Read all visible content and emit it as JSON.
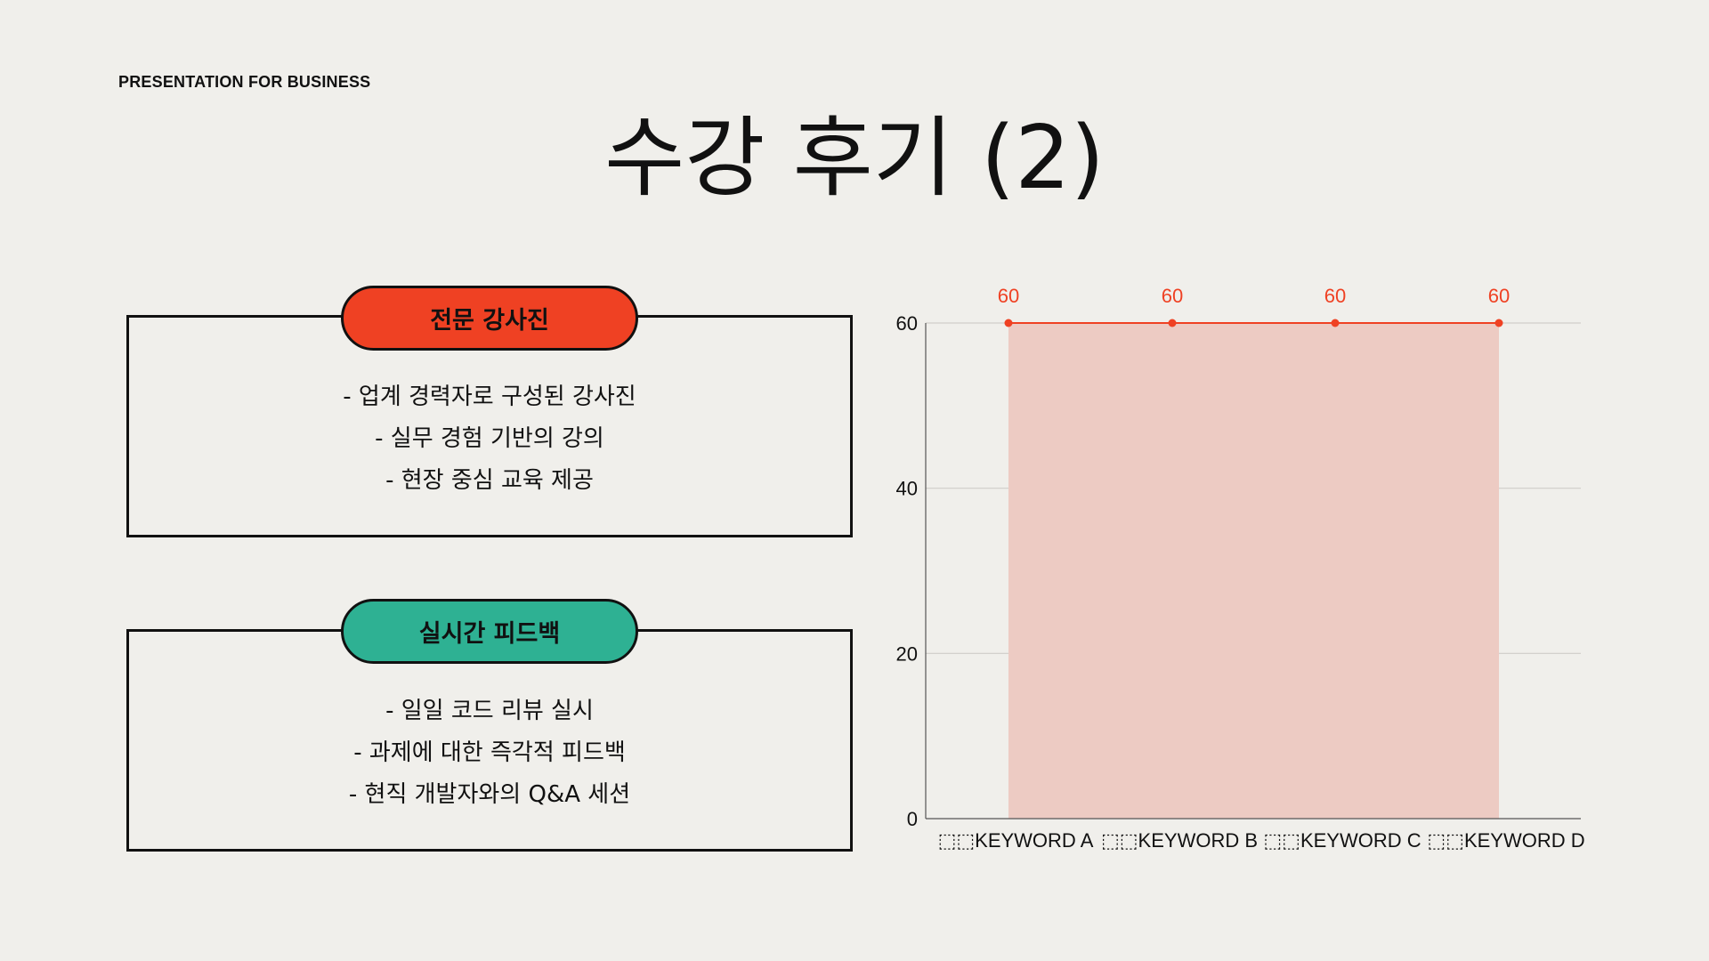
{
  "header": {
    "label": "PRESENTATION FOR BUSINESS"
  },
  "title": "수강 후기 (2)",
  "cards": [
    {
      "heading": "전문 강사진",
      "color": "#ef4123",
      "lines": [
        "- 업계 경력자로 구성된 강사진",
        "- 실무 경험 기반의 강의",
        "- 현장 중심 교육 제공"
      ]
    },
    {
      "heading": "실시간 피드백",
      "color": "#2eb193",
      "lines": [
        "- 일일 코드 리뷰 실시",
        "- 과제에 대한 즉각적 피드백",
        "- 현직 개발자와의 Q&A 세션"
      ]
    }
  ],
  "chart_data": {
    "type": "area",
    "categories": [
      "KEYWORD A",
      "KEYWORD B",
      "KEYWORD C",
      "KEYWORD D"
    ],
    "category_prefix": "⬚⬚",
    "series": [
      {
        "values": [
          60,
          60,
          60,
          60
        ]
      }
    ],
    "ylim": [
      0,
      60
    ],
    "yticks": [
      0,
      20,
      40,
      60
    ],
    "grid": true,
    "data_labels": true,
    "colors": {
      "line": "#ef4123",
      "fill": "#edcbc3",
      "label": "#ef4123",
      "grid": "#cfcdc9",
      "axis": "#555555"
    }
  }
}
